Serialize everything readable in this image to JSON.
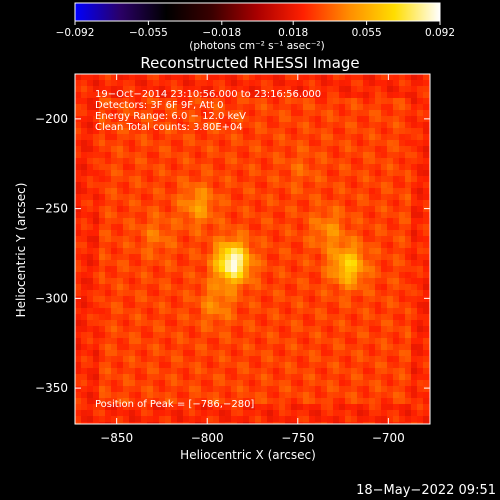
{
  "chart_data": {
    "type": "heatmap",
    "title": "Reconstructed RHESSI Image",
    "xlabel": "Heliocentric X (arcsec)",
    "ylabel": "Heliocentric Y (arcsec)",
    "xlim": [
      -873,
      -677
    ],
    "ylim": [
      -370,
      -175
    ],
    "x_ticks": [
      {
        "value": -850,
        "label": "−850"
      },
      {
        "value": -800,
        "label": "−800"
      },
      {
        "value": -750,
        "label": "−750"
      },
      {
        "value": -700,
        "label": "−700"
      }
    ],
    "y_ticks": [
      {
        "value": -200,
        "label": "−200"
      },
      {
        "value": -250,
        "label": "−250"
      },
      {
        "value": -300,
        "label": "−300"
      },
      {
        "value": -350,
        "label": "−350"
      }
    ],
    "colorbar": {
      "range": [
        -0.092,
        0.092
      ],
      "ticks": [
        {
          "value": -0.092,
          "label": "−0.092"
        },
        {
          "value": -0.055,
          "label": "−0.055"
        },
        {
          "value": -0.018,
          "label": "−0.018"
        },
        {
          "value": 0.018,
          "label": "0.018"
        },
        {
          "value": 0.055,
          "label": "0.055"
        },
        {
          "value": 0.092,
          "label": "0.092"
        }
      ],
      "unit_label": "(photons cm⁻² s⁻¹ asec⁻²)",
      "colors": [
        "#0000ff",
        "#2a0066",
        "#000000",
        "#3a0000",
        "#aa0000",
        "#ff2000",
        "#ff8c00",
        "#ffdd00",
        "#ffffff"
      ]
    },
    "sources": [
      {
        "x": -786,
        "y": -280,
        "value": 0.092
      },
      {
        "x": -722,
        "y": -282,
        "value": 0.066
      },
      {
        "x": -733,
        "y": -262,
        "value": 0.046
      },
      {
        "x": -805,
        "y": -248,
        "value": 0.05
      },
      {
        "x": -795,
        "y": -303,
        "value": 0.045
      },
      {
        "x": -828,
        "y": -265,
        "value": 0.04
      },
      {
        "x": -748,
        "y": -228,
        "value": 0.036
      },
      {
        "x": -772,
        "y": -338,
        "value": 0.03
      }
    ],
    "info_lines": [
      "19−Oct−2014 23:10:56.000 to 23:16:56.000",
      "Detectors: 3F 6F 9F, Att 0",
      "Energy Range: 6.0 − 12.0 keV",
      "Clean     Total counts: 3.80E+04"
    ],
    "peak_label": "Position of Peak = [−786,−280]"
  },
  "footer": {
    "timestamp": "18−May−2022 09:51"
  }
}
